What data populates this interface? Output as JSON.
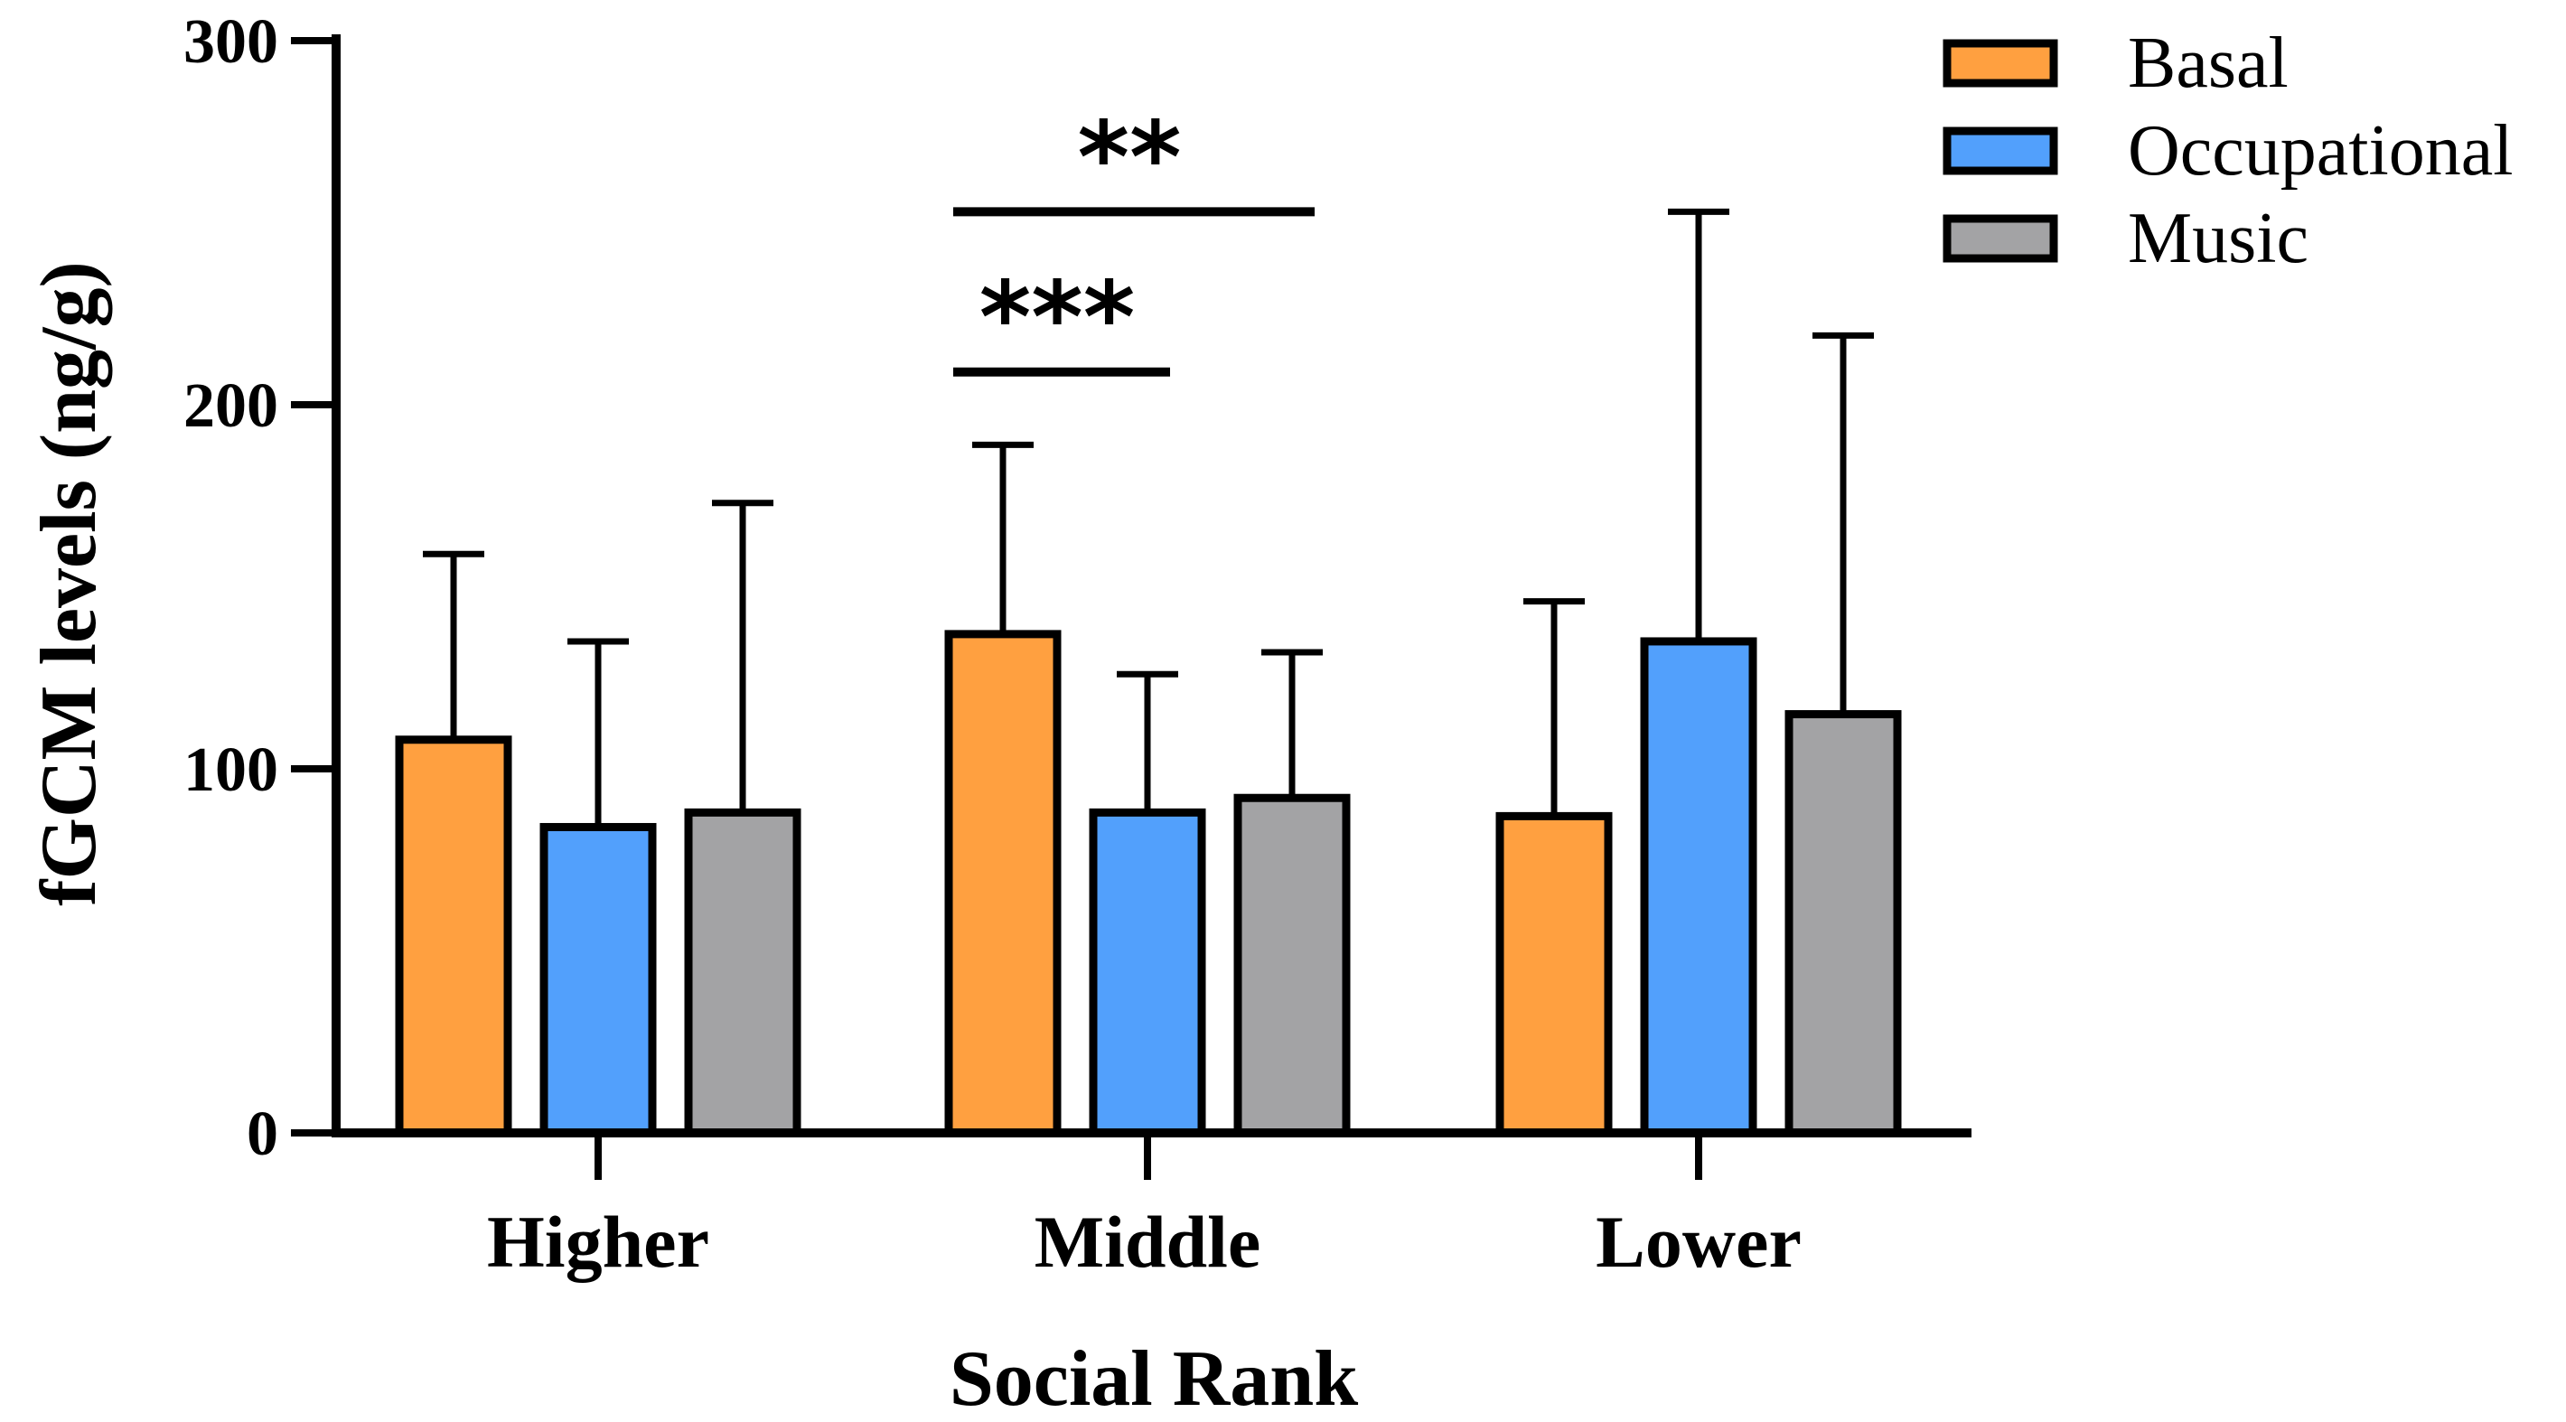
{
  "chart_data": {
    "type": "bar",
    "title": "",
    "xlabel": "Social Rank",
    "ylabel": "fGCM levels (ng/g)",
    "ylim": [
      0,
      300
    ],
    "yticks": [
      0,
      100,
      200,
      300
    ],
    "ytick_labels": [
      "0",
      "100",
      "200",
      "300"
    ],
    "grid": false,
    "legend_position": "top-right",
    "categories": [
      "Higher",
      "Middle",
      "Lower"
    ],
    "series": [
      {
        "name": "Basal",
        "color": "#ffa040",
        "values": [
          108,
          137,
          87
        ],
        "errors": [
          51,
          52,
          59
        ]
      },
      {
        "name": "Occupational",
        "color": "#52a0fc",
        "values": [
          84,
          88,
          135
        ],
        "errors": [
          51,
          38,
          118
        ]
      },
      {
        "name": "Music",
        "color": "#a3a3a5",
        "values": [
          88,
          92,
          115
        ],
        "errors": [
          85,
          40,
          104
        ]
      }
    ],
    "annotations": [
      {
        "text": "***",
        "category": "Middle",
        "from_series": 0,
        "to_series": 1,
        "y": 209
      },
      {
        "text": "**",
        "category": "Middle",
        "from_series": 0,
        "to_series": 2,
        "y": 253
      }
    ]
  }
}
